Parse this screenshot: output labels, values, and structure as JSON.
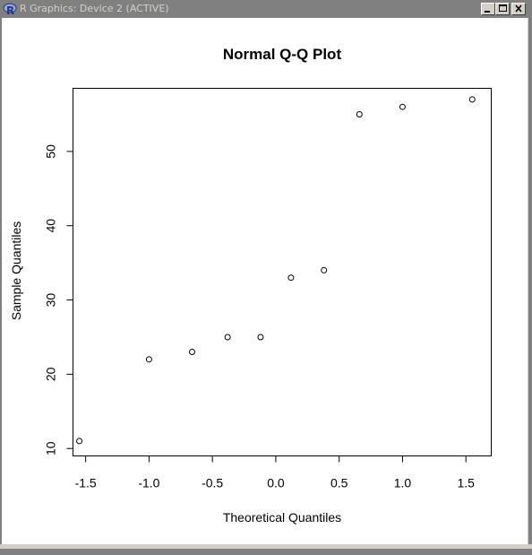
{
  "window": {
    "title": "R Graphics: Device 2 (ACTIVE)",
    "buttons": {
      "minimize": "minimize",
      "maximize": "maximize",
      "close": "close"
    }
  },
  "chart_data": {
    "type": "scatter",
    "title": "Normal Q-Q Plot",
    "xlabel": "Theoretical Quantiles",
    "ylabel": "Sample Quantiles",
    "xlim": [
      -1.6,
      1.7
    ],
    "ylim": [
      9.0,
      58.5
    ],
    "x_ticks": [
      -1.5,
      -1.0,
      -0.5,
      0.0,
      0.5,
      1.0,
      1.5
    ],
    "x_tick_labels": [
      "-1.5",
      "-1.0",
      "-0.5",
      "0.0",
      "0.5",
      "1.0",
      "1.5"
    ],
    "y_ticks": [
      10,
      20,
      30,
      40,
      50
    ],
    "y_tick_labels": [
      "10",
      "20",
      "30",
      "40",
      "50"
    ],
    "grid": false,
    "series": [
      {
        "x": [
          -1.55,
          -1.0,
          -0.66,
          -0.38,
          -0.12,
          0.12,
          0.38,
          0.66,
          1.0,
          1.55
        ],
        "y": [
          11,
          22,
          23,
          25,
          25,
          33,
          34,
          55,
          56,
          57
        ]
      }
    ]
  }
}
